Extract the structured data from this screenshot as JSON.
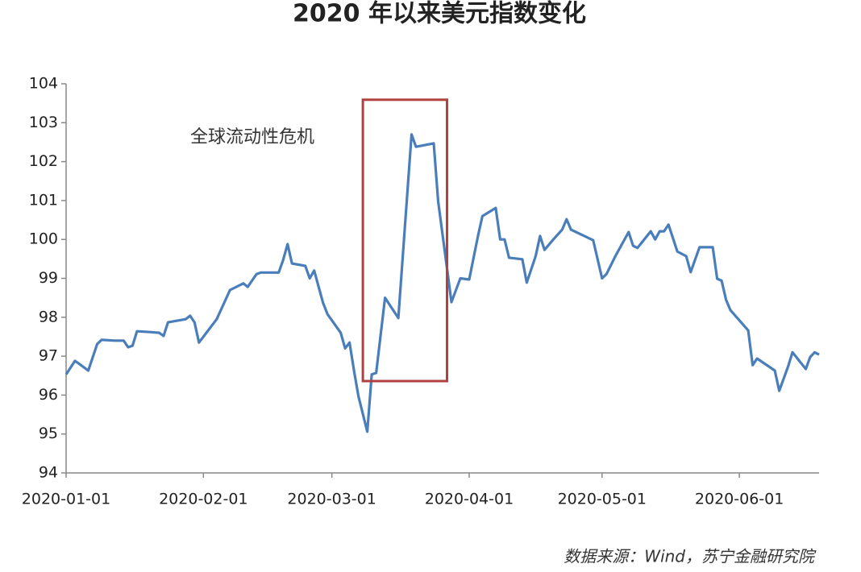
{
  "chart_data": {
    "type": "line",
    "title": "2020 年以来美元指数变化",
    "annotation": "全球流动性危机",
    "source": "数据来源：Wind，苏宁金融研究院",
    "color": "#4a7ebb",
    "highlight": {
      "x": [
        "2020-03-08",
        "2020-03-27"
      ],
      "y": [
        96.36,
        103.59
      ],
      "color": "#b0413e"
    },
    "x": [
      "2020-01-01",
      "2020-01-03",
      "2020-01-04",
      "2020-01-06",
      "2020-01-08",
      "2020-01-09",
      "2020-01-12",
      "2020-01-14",
      "2020-01-15",
      "2020-01-16",
      "2020-01-17",
      "2020-01-20",
      "2020-01-22",
      "2020-01-23",
      "2020-01-24",
      "2020-01-28",
      "2020-01-29",
      "2020-01-30",
      "2020-01-31",
      "2020-02-04",
      "2020-02-07",
      "2020-02-10",
      "2020-02-11",
      "2020-02-13",
      "2020-02-14",
      "2020-02-18",
      "2020-02-19",
      "2020-02-20",
      "2020-02-21",
      "2020-02-24",
      "2020-02-25",
      "2020-02-26",
      "2020-02-28",
      "2020-02-29",
      "2020-03-03",
      "2020-03-04",
      "2020-03-05",
      "2020-03-06",
      "2020-03-07",
      "2020-03-09",
      "2020-03-10",
      "2020-03-11",
      "2020-03-13",
      "2020-03-16",
      "2020-03-19",
      "2020-03-20",
      "2020-03-24",
      "2020-03-25",
      "2020-03-28",
      "2020-03-30",
      "2020-04-01",
      "2020-04-03",
      "2020-04-04",
      "2020-04-07",
      "2020-04-08",
      "2020-04-09",
      "2020-04-10",
      "2020-04-13",
      "2020-04-14",
      "2020-04-16",
      "2020-04-17",
      "2020-04-18",
      "2020-04-20",
      "2020-04-22",
      "2020-04-23",
      "2020-04-24",
      "2020-04-29",
      "2020-05-01",
      "2020-05-02",
      "2020-05-04",
      "2020-05-07",
      "2020-05-08",
      "2020-05-09",
      "2020-05-12",
      "2020-05-13",
      "2020-05-14",
      "2020-05-15",
      "2020-05-16",
      "2020-05-18",
      "2020-05-20",
      "2020-05-21",
      "2020-05-23",
      "2020-05-26",
      "2020-05-27",
      "2020-05-28",
      "2020-05-29",
      "2020-05-30",
      "2020-06-03",
      "2020-06-04",
      "2020-06-05",
      "2020-06-09",
      "2020-06-10",
      "2020-06-12",
      "2020-06-13",
      "2020-06-16",
      "2020-06-17",
      "2020-06-18",
      "2020-06-19"
    ],
    "values": [
      96.53,
      96.88,
      96.8,
      96.63,
      97.31,
      97.42,
      97.4,
      97.4,
      97.23,
      97.27,
      97.64,
      97.62,
      97.6,
      97.52,
      97.87,
      97.95,
      98.04,
      97.87,
      97.35,
      97.95,
      98.7,
      98.87,
      98.78,
      99.11,
      99.15,
      99.15,
      99.47,
      99.88,
      99.38,
      99.32,
      99.0,
      99.2,
      98.37,
      98.08,
      97.6,
      97.2,
      97.35,
      96.63,
      95.97,
      95.06,
      96.53,
      96.57,
      98.5,
      97.98,
      102.7,
      102.38,
      102.47,
      100.98,
      98.39,
      99.0,
      98.97,
      100.1,
      100.6,
      100.81,
      100.0,
      100.0,
      99.53,
      99.49,
      98.89,
      99.57,
      100.09,
      99.73,
      100.0,
      100.25,
      100.52,
      100.25,
      99.98,
      99.0,
      99.11,
      99.57,
      100.19,
      99.84,
      99.78,
      100.21,
      100.0,
      100.21,
      100.21,
      100.38,
      99.69,
      99.57,
      99.16,
      99.8,
      99.8,
      98.99,
      98.94,
      98.45,
      98.18,
      97.66,
      96.77,
      96.94,
      96.63,
      96.11,
      96.73,
      97.1,
      96.67,
      96.98,
      97.1,
      97.04
    ],
    "xlim": [
      "2020-01-01",
      "2020-06-19"
    ],
    "xticks": [
      "2020-01-01",
      "2020-02-01",
      "2020-03-01",
      "2020-04-01",
      "2020-05-01",
      "2020-06-01"
    ],
    "ylim": [
      94,
      104
    ],
    "yticks": [
      94,
      95,
      96,
      97,
      98,
      99,
      100,
      101,
      102,
      103,
      104
    ]
  }
}
